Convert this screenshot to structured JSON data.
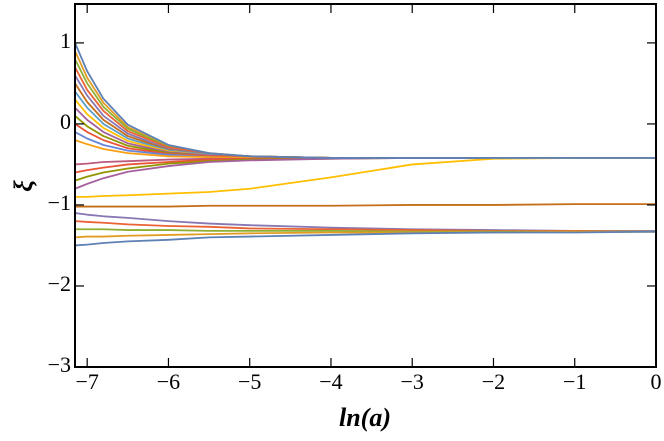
{
  "chart_data": {
    "type": "line",
    "x_label": "ln(a)",
    "y_label": "ξ",
    "x": [
      -7.15,
      -7,
      -6.8,
      -6.5,
      -6,
      -5.5,
      -5,
      -4,
      -3,
      -2,
      -1,
      0
    ],
    "xlim": [
      -7.15,
      0
    ],
    "ylim": [
      -3,
      1.48
    ],
    "xticks": [
      {
        "value": -7,
        "label": "−7"
      },
      {
        "value": -6,
        "label": "−6"
      },
      {
        "value": -5,
        "label": "−5"
      },
      {
        "value": -4,
        "label": "−4"
      },
      {
        "value": -3,
        "label": "−3"
      },
      {
        "value": -2,
        "label": "−2"
      },
      {
        "value": -1,
        "label": "−1"
      },
      0
    ],
    "yticks": [
      {
        "value": -3,
        "label": "−3"
      },
      {
        "value": -2,
        "label": "−2"
      },
      {
        "value": -1,
        "label": "−1"
      },
      0,
      1
    ],
    "series": [
      {
        "color": "#E19C24",
        "values": [
          0.9,
          0.57,
          0.26,
          -0.04,
          -0.27,
          -0.36,
          -0.4,
          -0.42,
          -0.42,
          -0.42,
          -0.42,
          -0.42
        ]
      },
      {
        "color": "#8FB032",
        "values": [
          0.8,
          0.5,
          0.21,
          -0.06,
          -0.28,
          -0.37,
          -0.4,
          -0.42,
          -0.42,
          -0.42,
          -0.42,
          -0.42
        ]
      },
      {
        "color": "#EB6235",
        "values": [
          0.7,
          0.42,
          0.16,
          -0.09,
          -0.29,
          -0.37,
          -0.4,
          -0.42,
          -0.42,
          -0.42,
          -0.42,
          -0.42
        ]
      },
      {
        "color": "#8778B3",
        "values": [
          0.6,
          0.35,
          0.1,
          -0.12,
          -0.31,
          -0.38,
          -0.4,
          -0.42,
          -0.42,
          -0.42,
          -0.42,
          -0.42
        ]
      },
      {
        "color": "#C56E1A",
        "values": [
          0.5,
          0.27,
          0.05,
          -0.15,
          -0.32,
          -0.38,
          -0.4,
          -0.42,
          -0.42,
          -0.42,
          -0.42,
          -0.42
        ]
      },
      {
        "color": "#5D9EC7",
        "values": [
          0.4,
          0.2,
          0.0,
          -0.18,
          -0.33,
          -0.38,
          -0.41,
          -0.42,
          -0.42,
          -0.42,
          -0.42,
          -0.42
        ]
      },
      {
        "color": "#FFBF00",
        "values": [
          0.3,
          0.12,
          -0.05,
          -0.21,
          -0.34,
          -0.39,
          -0.41,
          -0.42,
          -0.42,
          -0.42,
          -0.42,
          -0.42
        ]
      },
      {
        "color": "#A5609D",
        "values": [
          0.2,
          0.05,
          -0.1,
          -0.24,
          -0.35,
          -0.39,
          -0.41,
          -0.42,
          -0.42,
          -0.42,
          -0.42,
          -0.42
        ]
      },
      {
        "color": "#929600",
        "values": [
          0.1,
          -0.03,
          -0.15,
          -0.27,
          -0.36,
          -0.4,
          -0.41,
          -0.42,
          -0.42,
          -0.42,
          -0.42,
          -0.42
        ]
      },
      {
        "color": "#E95536",
        "values": [
          0.0,
          -0.1,
          -0.2,
          -0.3,
          -0.37,
          -0.4,
          -0.41,
          -0.42,
          -0.42,
          -0.42,
          -0.42,
          -0.42
        ]
      },
      {
        "color": "#6685D9",
        "values": [
          -0.1,
          -0.18,
          -0.26,
          -0.33,
          -0.38,
          -0.41,
          -0.42,
          -0.42,
          -0.42,
          -0.42,
          -0.42,
          -0.42
        ]
      },
      {
        "color": "#F89F13",
        "values": [
          -0.2,
          -0.25,
          -0.31,
          -0.36,
          -0.4,
          -0.41,
          -0.42,
          -0.42,
          -0.42,
          -0.42,
          -0.42,
          -0.42
        ]
      },
      {
        "color": "#BC5B80",
        "values": [
          -0.5,
          -0.49,
          -0.47,
          -0.46,
          -0.44,
          -0.43,
          -0.43,
          -0.42,
          -0.42,
          -0.42,
          -0.42,
          -0.42
        ]
      },
      {
        "color": "#E95536",
        "values": [
          -0.6,
          -0.57,
          -0.54,
          -0.5,
          -0.47,
          -0.44,
          -0.43,
          -0.42,
          -0.42,
          -0.42,
          -0.42,
          -0.42
        ]
      },
      {
        "color": "#929600",
        "values": [
          -0.7,
          -0.65,
          -0.6,
          -0.55,
          -0.49,
          -0.46,
          -0.44,
          -0.43,
          -0.42,
          -0.42,
          -0.42,
          -0.42
        ]
      },
      {
        "color": "#A5609D",
        "values": [
          -0.8,
          -0.74,
          -0.67,
          -0.59,
          -0.52,
          -0.47,
          -0.45,
          -0.43,
          -0.42,
          -0.42,
          -0.42,
          -0.42
        ]
      },
      {
        "color": "#FFBF00",
        "values": [
          -0.9,
          -0.9,
          -0.89,
          -0.88,
          -0.86,
          -0.84,
          -0.8,
          -0.66,
          -0.5,
          -0.43,
          -0.42,
          -0.42
        ]
      },
      {
        "color": "#C56E1A",
        "values": [
          -1.02,
          -1.02,
          -1.02,
          -1.02,
          -1.02,
          -1.01,
          -1.01,
          -1.01,
          -1.0,
          -1.0,
          -0.99,
          -0.99
        ]
      },
      {
        "color": "#8778B3",
        "values": [
          -1.1,
          -1.12,
          -1.14,
          -1.16,
          -1.2,
          -1.23,
          -1.25,
          -1.28,
          -1.3,
          -1.31,
          -1.32,
          -1.32
        ]
      },
      {
        "color": "#EB6235",
        "values": [
          -1.2,
          -1.21,
          -1.22,
          -1.24,
          -1.26,
          -1.27,
          -1.29,
          -1.3,
          -1.31,
          -1.32,
          -1.32,
          -1.33
        ]
      },
      {
        "color": "#8FB032",
        "values": [
          -1.3,
          -1.3,
          -1.3,
          -1.31,
          -1.31,
          -1.32,
          -1.32,
          -1.32,
          -1.33,
          -1.33,
          -1.33,
          -1.33
        ]
      },
      {
        "color": "#E19C24",
        "values": [
          -1.4,
          -1.39,
          -1.39,
          -1.38,
          -1.37,
          -1.36,
          -1.35,
          -1.34,
          -1.34,
          -1.34,
          -1.33,
          -1.33
        ]
      },
      {
        "color": "#5E81B5",
        "values": [
          -1.5,
          -1.49,
          -1.47,
          -1.45,
          -1.43,
          -1.4,
          -1.39,
          -1.37,
          -1.35,
          -1.34,
          -1.34,
          -1.33
        ]
      },
      {
        "color": "#5E81B5",
        "values": [
          1.0,
          0.65,
          0.31,
          -0.01,
          -0.26,
          -0.36,
          -0.4,
          -0.42,
          -0.42,
          -0.42,
          -0.42,
          -0.42
        ]
      }
    ]
  }
}
